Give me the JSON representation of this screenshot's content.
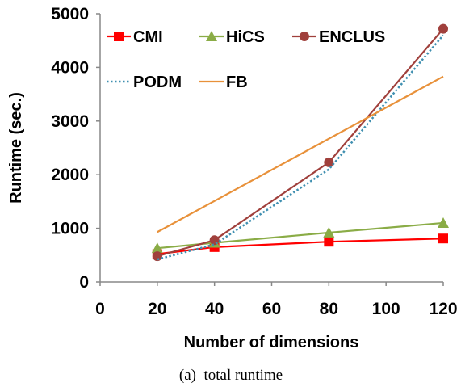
{
  "chart_data": {
    "type": "line",
    "caption": "(a)  total runtime",
    "xlabel": "Number of dimensions",
    "ylabel": "Runtime (sec.)",
    "xlim": [
      0,
      120
    ],
    "ylim": [
      0,
      5000
    ],
    "xticks": [
      0,
      20,
      40,
      60,
      80,
      100,
      120
    ],
    "yticks": [
      0,
      1000,
      2000,
      3000,
      4000,
      5000
    ],
    "grid": false,
    "legend_position": "top-left",
    "series": [
      {
        "name": "CMI",
        "color": "#ff0000",
        "marker": "square",
        "dash": "solid",
        "x": [
          20,
          40,
          80,
          120
        ],
        "y": [
          520,
          650,
          750,
          810
        ]
      },
      {
        "name": "HiCS",
        "color": "#8aac46",
        "marker": "triangle",
        "dash": "solid",
        "x": [
          20,
          40,
          80,
          120
        ],
        "y": [
          630,
          730,
          920,
          1100
        ]
      },
      {
        "name": "ENCLUS",
        "color": "#a0403c",
        "marker": "circle",
        "dash": "solid",
        "x": [
          20,
          40,
          80,
          120
        ],
        "y": [
          480,
          780,
          2230,
          4720
        ]
      },
      {
        "name": "PODM",
        "color": "#3f8fb0",
        "marker": "none",
        "dash": "dotted",
        "x": [
          20,
          40,
          80,
          120
        ],
        "y": [
          420,
          700,
          2100,
          4600
        ]
      },
      {
        "name": "FB",
        "color": "#e8913a",
        "marker": "none",
        "dash": "solid",
        "x": [
          20,
          120
        ],
        "y": [
          930,
          3830
        ]
      }
    ]
  }
}
